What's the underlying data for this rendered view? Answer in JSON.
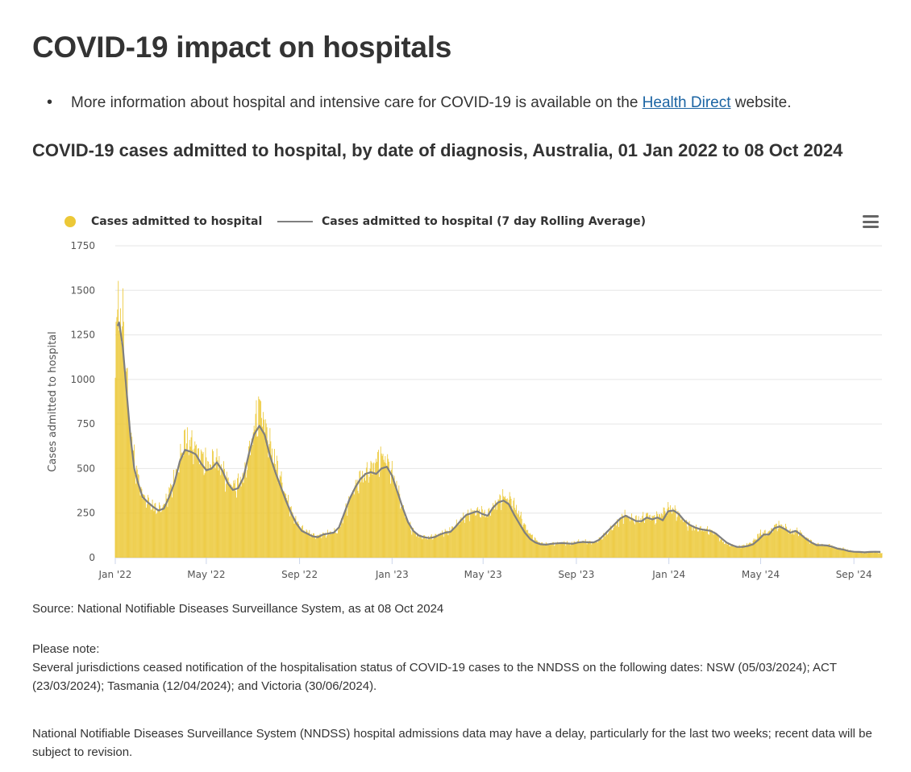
{
  "page": {
    "title": "COVID-19 impact on hospitals",
    "info_pre": "More information about hospital and intensive care for COVID-19 is available on the ",
    "info_link": "Health Direct",
    "info_post": " website.",
    "chart_heading": "COVID-19 cases admitted to hospital, by date of diagnosis, Australia, 01 Jan 2022 to 08 Oct 2024",
    "menu_icon": "hamburger-menu-icon"
  },
  "notes": {
    "source": "Source: National Notifiable Diseases Surveillance System, as at 08 Oct 2024",
    "please_note": "Please note:",
    "note1": "Several jurisdictions ceased notification of the hospitalisation status of COVID-19 cases to the NNDSS on the following dates: NSW (05/03/2024); ACT (23/03/2024); Tasmania (12/04/2024); and Victoria (30/06/2024).",
    "note2": "National Notifiable Diseases Surveillance System (NNDSS) hospital admissions data may have a delay, particularly for the last two weeks; recent data will be subject to revision."
  },
  "chart_data": {
    "type": "bar",
    "title": "",
    "xlabel": "",
    "ylabel": "Cases admitted to hospital",
    "ylim": [
      0,
      1750
    ],
    "yticks": [
      0,
      250,
      500,
      750,
      1000,
      1250,
      1500,
      1750
    ],
    "xtick_labels": [
      "Jan '22",
      "May '22",
      "Sep '22",
      "Jan '23",
      "May '23",
      "Sep '23",
      "Jan '24",
      "May '24",
      "Sep '24"
    ],
    "xtick_dates": [
      "2022-01-01",
      "2022-05-01",
      "2022-09-01",
      "2023-01-01",
      "2023-05-01",
      "2023-09-01",
      "2024-01-01",
      "2024-05-01",
      "2024-09-01"
    ],
    "x_range": [
      "2022-01-01",
      "2024-10-08"
    ],
    "grid": true,
    "legend_position": "top-left",
    "colors": {
      "bars": "#ecc837",
      "line": "#7f7f7f",
      "grid": "#e6e6e6"
    },
    "series": [
      {
        "name": "Cases admitted to hospital",
        "kind": "bar",
        "resolution": "daily (approximate reading at key dates, interpolated)",
        "points": [
          [
            "2022-01-01",
            980
          ],
          [
            "2022-01-03",
            1340
          ],
          [
            "2022-01-05",
            1500
          ],
          [
            "2022-01-08",
            1280
          ],
          [
            "2022-01-11",
            1340
          ],
          [
            "2022-01-16",
            1000
          ],
          [
            "2022-01-21",
            720
          ],
          [
            "2022-01-27",
            520
          ],
          [
            "2022-02-06",
            350
          ],
          [
            "2022-02-16",
            300
          ],
          [
            "2022-02-26",
            270
          ],
          [
            "2022-03-06",
            290
          ],
          [
            "2022-03-16",
            400
          ],
          [
            "2022-03-26",
            520
          ],
          [
            "2022-04-02",
            660
          ],
          [
            "2022-04-10",
            640
          ],
          [
            "2022-04-18",
            610
          ],
          [
            "2022-04-26",
            560
          ],
          [
            "2022-05-04",
            520
          ],
          [
            "2022-05-12",
            560
          ],
          [
            "2022-05-20",
            520
          ],
          [
            "2022-05-28",
            440
          ],
          [
            "2022-06-05",
            400
          ],
          [
            "2022-06-13",
            420
          ],
          [
            "2022-06-21",
            470
          ],
          [
            "2022-06-29",
            640
          ],
          [
            "2022-07-06",
            780
          ],
          [
            "2022-07-11",
            860
          ],
          [
            "2022-07-17",
            750
          ],
          [
            "2022-07-25",
            620
          ],
          [
            "2022-08-03",
            500
          ],
          [
            "2022-08-13",
            360
          ],
          [
            "2022-08-23",
            240
          ],
          [
            "2022-09-02",
            170
          ],
          [
            "2022-09-12",
            140
          ],
          [
            "2022-09-22",
            120
          ],
          [
            "2022-10-02",
            130
          ],
          [
            "2022-10-12",
            140
          ],
          [
            "2022-10-22",
            150
          ],
          [
            "2022-11-01",
            270
          ],
          [
            "2022-11-11",
            380
          ],
          [
            "2022-11-21",
            450
          ],
          [
            "2022-12-01",
            480
          ],
          [
            "2022-12-11",
            540
          ],
          [
            "2022-12-21",
            570
          ],
          [
            "2022-12-28",
            520
          ],
          [
            "2023-01-07",
            400
          ],
          [
            "2023-01-17",
            250
          ],
          [
            "2023-01-27",
            160
          ],
          [
            "2023-02-06",
            120
          ],
          [
            "2023-02-16",
            110
          ],
          [
            "2023-02-26",
            120
          ],
          [
            "2023-03-08",
            140
          ],
          [
            "2023-03-18",
            150
          ],
          [
            "2023-03-28",
            190
          ],
          [
            "2023-04-07",
            230
          ],
          [
            "2023-04-17",
            260
          ],
          [
            "2023-04-27",
            260
          ],
          [
            "2023-05-07",
            240
          ],
          [
            "2023-05-17",
            300
          ],
          [
            "2023-05-27",
            340
          ],
          [
            "2023-06-06",
            330
          ],
          [
            "2023-06-16",
            260
          ],
          [
            "2023-06-26",
            170
          ],
          [
            "2023-07-06",
            110
          ],
          [
            "2023-07-16",
            80
          ],
          [
            "2023-07-26",
            75
          ],
          [
            "2023-08-05",
            80
          ],
          [
            "2023-08-15",
            85
          ],
          [
            "2023-08-25",
            80
          ],
          [
            "2023-09-04",
            90
          ],
          [
            "2023-09-14",
            90
          ],
          [
            "2023-09-24",
            85
          ],
          [
            "2023-10-04",
            110
          ],
          [
            "2023-10-14",
            150
          ],
          [
            "2023-10-24",
            190
          ],
          [
            "2023-11-03",
            240
          ],
          [
            "2023-11-13",
            220
          ],
          [
            "2023-11-23",
            210
          ],
          [
            "2023-12-03",
            240
          ],
          [
            "2023-12-13",
            220
          ],
          [
            "2023-12-23",
            250
          ],
          [
            "2024-01-02",
            280
          ],
          [
            "2024-01-12",
            250
          ],
          [
            "2024-01-22",
            200
          ],
          [
            "2024-02-01",
            170
          ],
          [
            "2024-02-11",
            160
          ],
          [
            "2024-02-21",
            155
          ],
          [
            "2024-03-02",
            140
          ],
          [
            "2024-03-12",
            90
          ],
          [
            "2024-03-22",
            70
          ],
          [
            "2024-04-01",
            60
          ],
          [
            "2024-04-11",
            70
          ],
          [
            "2024-04-21",
            90
          ],
          [
            "2024-05-01",
            140
          ],
          [
            "2024-05-11",
            140
          ],
          [
            "2024-05-21",
            180
          ],
          [
            "2024-05-31",
            180
          ],
          [
            "2024-06-10",
            140
          ],
          [
            "2024-06-20",
            150
          ],
          [
            "2024-06-30",
            110
          ],
          [
            "2024-07-10",
            80
          ],
          [
            "2024-07-20",
            70
          ],
          [
            "2024-07-30",
            70
          ],
          [
            "2024-08-09",
            55
          ],
          [
            "2024-08-19",
            50
          ],
          [
            "2024-08-29",
            35
          ],
          [
            "2024-09-08",
            30
          ],
          [
            "2024-09-18",
            28
          ],
          [
            "2024-09-28",
            30
          ],
          [
            "2024-10-08",
            25
          ]
        ]
      },
      {
        "name": "Cases admitted to hospital (7 day Rolling Average)",
        "kind": "line",
        "points": [
          [
            "2022-01-04",
            1300
          ],
          [
            "2022-01-06",
            1320
          ],
          [
            "2022-01-11",
            1180
          ],
          [
            "2022-01-16",
            930
          ],
          [
            "2022-01-21",
            680
          ],
          [
            "2022-01-26",
            500
          ],
          [
            "2022-01-31",
            420
          ],
          [
            "2022-02-06",
            340
          ],
          [
            "2022-02-13",
            310
          ],
          [
            "2022-02-20",
            285
          ],
          [
            "2022-02-27",
            265
          ],
          [
            "2022-03-06",
            275
          ],
          [
            "2022-03-13",
            340
          ],
          [
            "2022-03-20",
            420
          ],
          [
            "2022-03-27",
            540
          ],
          [
            "2022-04-03",
            605
          ],
          [
            "2022-04-10",
            595
          ],
          [
            "2022-04-17",
            580
          ],
          [
            "2022-04-24",
            530
          ],
          [
            "2022-05-01",
            490
          ],
          [
            "2022-05-08",
            500
          ],
          [
            "2022-05-15",
            535
          ],
          [
            "2022-05-22",
            490
          ],
          [
            "2022-05-29",
            420
          ],
          [
            "2022-06-05",
            380
          ],
          [
            "2022-06-12",
            390
          ],
          [
            "2022-06-19",
            450
          ],
          [
            "2022-06-26",
            580
          ],
          [
            "2022-07-03",
            690
          ],
          [
            "2022-07-10",
            740
          ],
          [
            "2022-07-17",
            690
          ],
          [
            "2022-07-24",
            570
          ],
          [
            "2022-07-31",
            480
          ],
          [
            "2022-08-07",
            400
          ],
          [
            "2022-08-14",
            320
          ],
          [
            "2022-08-21",
            250
          ],
          [
            "2022-08-28",
            190
          ],
          [
            "2022-09-04",
            150
          ],
          [
            "2022-09-11",
            135
          ],
          [
            "2022-09-18",
            120
          ],
          [
            "2022-09-25",
            115
          ],
          [
            "2022-10-02",
            130
          ],
          [
            "2022-10-09",
            135
          ],
          [
            "2022-10-16",
            140
          ],
          [
            "2022-10-23",
            170
          ],
          [
            "2022-10-30",
            250
          ],
          [
            "2022-11-06",
            330
          ],
          [
            "2022-11-13",
            390
          ],
          [
            "2022-11-20",
            440
          ],
          [
            "2022-11-27",
            470
          ],
          [
            "2022-12-04",
            480
          ],
          [
            "2022-12-11",
            470
          ],
          [
            "2022-12-18",
            500
          ],
          [
            "2022-12-25",
            510
          ],
          [
            "2023-01-01",
            460
          ],
          [
            "2023-01-08",
            370
          ],
          [
            "2023-01-15",
            280
          ],
          [
            "2023-01-22",
            200
          ],
          [
            "2023-01-29",
            150
          ],
          [
            "2023-02-05",
            125
          ],
          [
            "2023-02-12",
            115
          ],
          [
            "2023-02-19",
            110
          ],
          [
            "2023-02-26",
            115
          ],
          [
            "2023-03-05",
            130
          ],
          [
            "2023-03-12",
            140
          ],
          [
            "2023-03-19",
            145
          ],
          [
            "2023-03-26",
            175
          ],
          [
            "2023-04-02",
            210
          ],
          [
            "2023-04-09",
            240
          ],
          [
            "2023-04-16",
            250
          ],
          [
            "2023-04-23",
            260
          ],
          [
            "2023-04-30",
            245
          ],
          [
            "2023-05-07",
            235
          ],
          [
            "2023-05-14",
            280
          ],
          [
            "2023-05-21",
            310
          ],
          [
            "2023-05-28",
            320
          ],
          [
            "2023-06-04",
            300
          ],
          [
            "2023-06-11",
            240
          ],
          [
            "2023-06-18",
            190
          ],
          [
            "2023-06-25",
            140
          ],
          [
            "2023-07-02",
            105
          ],
          [
            "2023-07-09",
            85
          ],
          [
            "2023-07-16",
            75
          ],
          [
            "2023-07-23",
            73
          ],
          [
            "2023-07-30",
            78
          ],
          [
            "2023-08-06",
            80
          ],
          [
            "2023-08-13",
            82
          ],
          [
            "2023-08-20",
            80
          ],
          [
            "2023-08-27",
            78
          ],
          [
            "2023-09-03",
            85
          ],
          [
            "2023-09-10",
            88
          ],
          [
            "2023-09-17",
            86
          ],
          [
            "2023-09-24",
            86
          ],
          [
            "2023-10-01",
            100
          ],
          [
            "2023-10-08",
            130
          ],
          [
            "2023-10-15",
            160
          ],
          [
            "2023-10-22",
            190
          ],
          [
            "2023-10-29",
            220
          ],
          [
            "2023-11-05",
            235
          ],
          [
            "2023-11-12",
            220
          ],
          [
            "2023-11-19",
            205
          ],
          [
            "2023-11-26",
            205
          ],
          [
            "2023-12-03",
            225
          ],
          [
            "2023-12-10",
            215
          ],
          [
            "2023-12-17",
            225
          ],
          [
            "2023-12-24",
            210
          ],
          [
            "2023-12-31",
            260
          ],
          [
            "2024-01-07",
            265
          ],
          [
            "2024-01-14",
            245
          ],
          [
            "2024-01-21",
            210
          ],
          [
            "2024-01-28",
            185
          ],
          [
            "2024-02-04",
            170
          ],
          [
            "2024-02-11",
            160
          ],
          [
            "2024-02-18",
            155
          ],
          [
            "2024-02-25",
            150
          ],
          [
            "2024-03-03",
            135
          ],
          [
            "2024-03-10",
            110
          ],
          [
            "2024-03-17",
            85
          ],
          [
            "2024-03-24",
            70
          ],
          [
            "2024-03-31",
            60
          ],
          [
            "2024-04-07",
            60
          ],
          [
            "2024-04-14",
            65
          ],
          [
            "2024-04-21",
            75
          ],
          [
            "2024-04-28",
            100
          ],
          [
            "2024-05-05",
            130
          ],
          [
            "2024-05-12",
            130
          ],
          [
            "2024-05-19",
            165
          ],
          [
            "2024-05-26",
            175
          ],
          [
            "2024-06-02",
            160
          ],
          [
            "2024-06-09",
            140
          ],
          [
            "2024-06-16",
            150
          ],
          [
            "2024-06-23",
            130
          ],
          [
            "2024-06-30",
            105
          ],
          [
            "2024-07-07",
            85
          ],
          [
            "2024-07-14",
            70
          ],
          [
            "2024-07-21",
            70
          ],
          [
            "2024-07-28",
            68
          ],
          [
            "2024-08-04",
            60
          ],
          [
            "2024-08-11",
            50
          ],
          [
            "2024-08-18",
            45
          ],
          [
            "2024-08-25",
            37
          ],
          [
            "2024-09-01",
            33
          ],
          [
            "2024-09-08",
            32
          ],
          [
            "2024-09-15",
            30
          ],
          [
            "2024-09-22",
            32
          ],
          [
            "2024-09-29",
            33
          ],
          [
            "2024-10-06",
            32
          ]
        ]
      }
    ]
  }
}
